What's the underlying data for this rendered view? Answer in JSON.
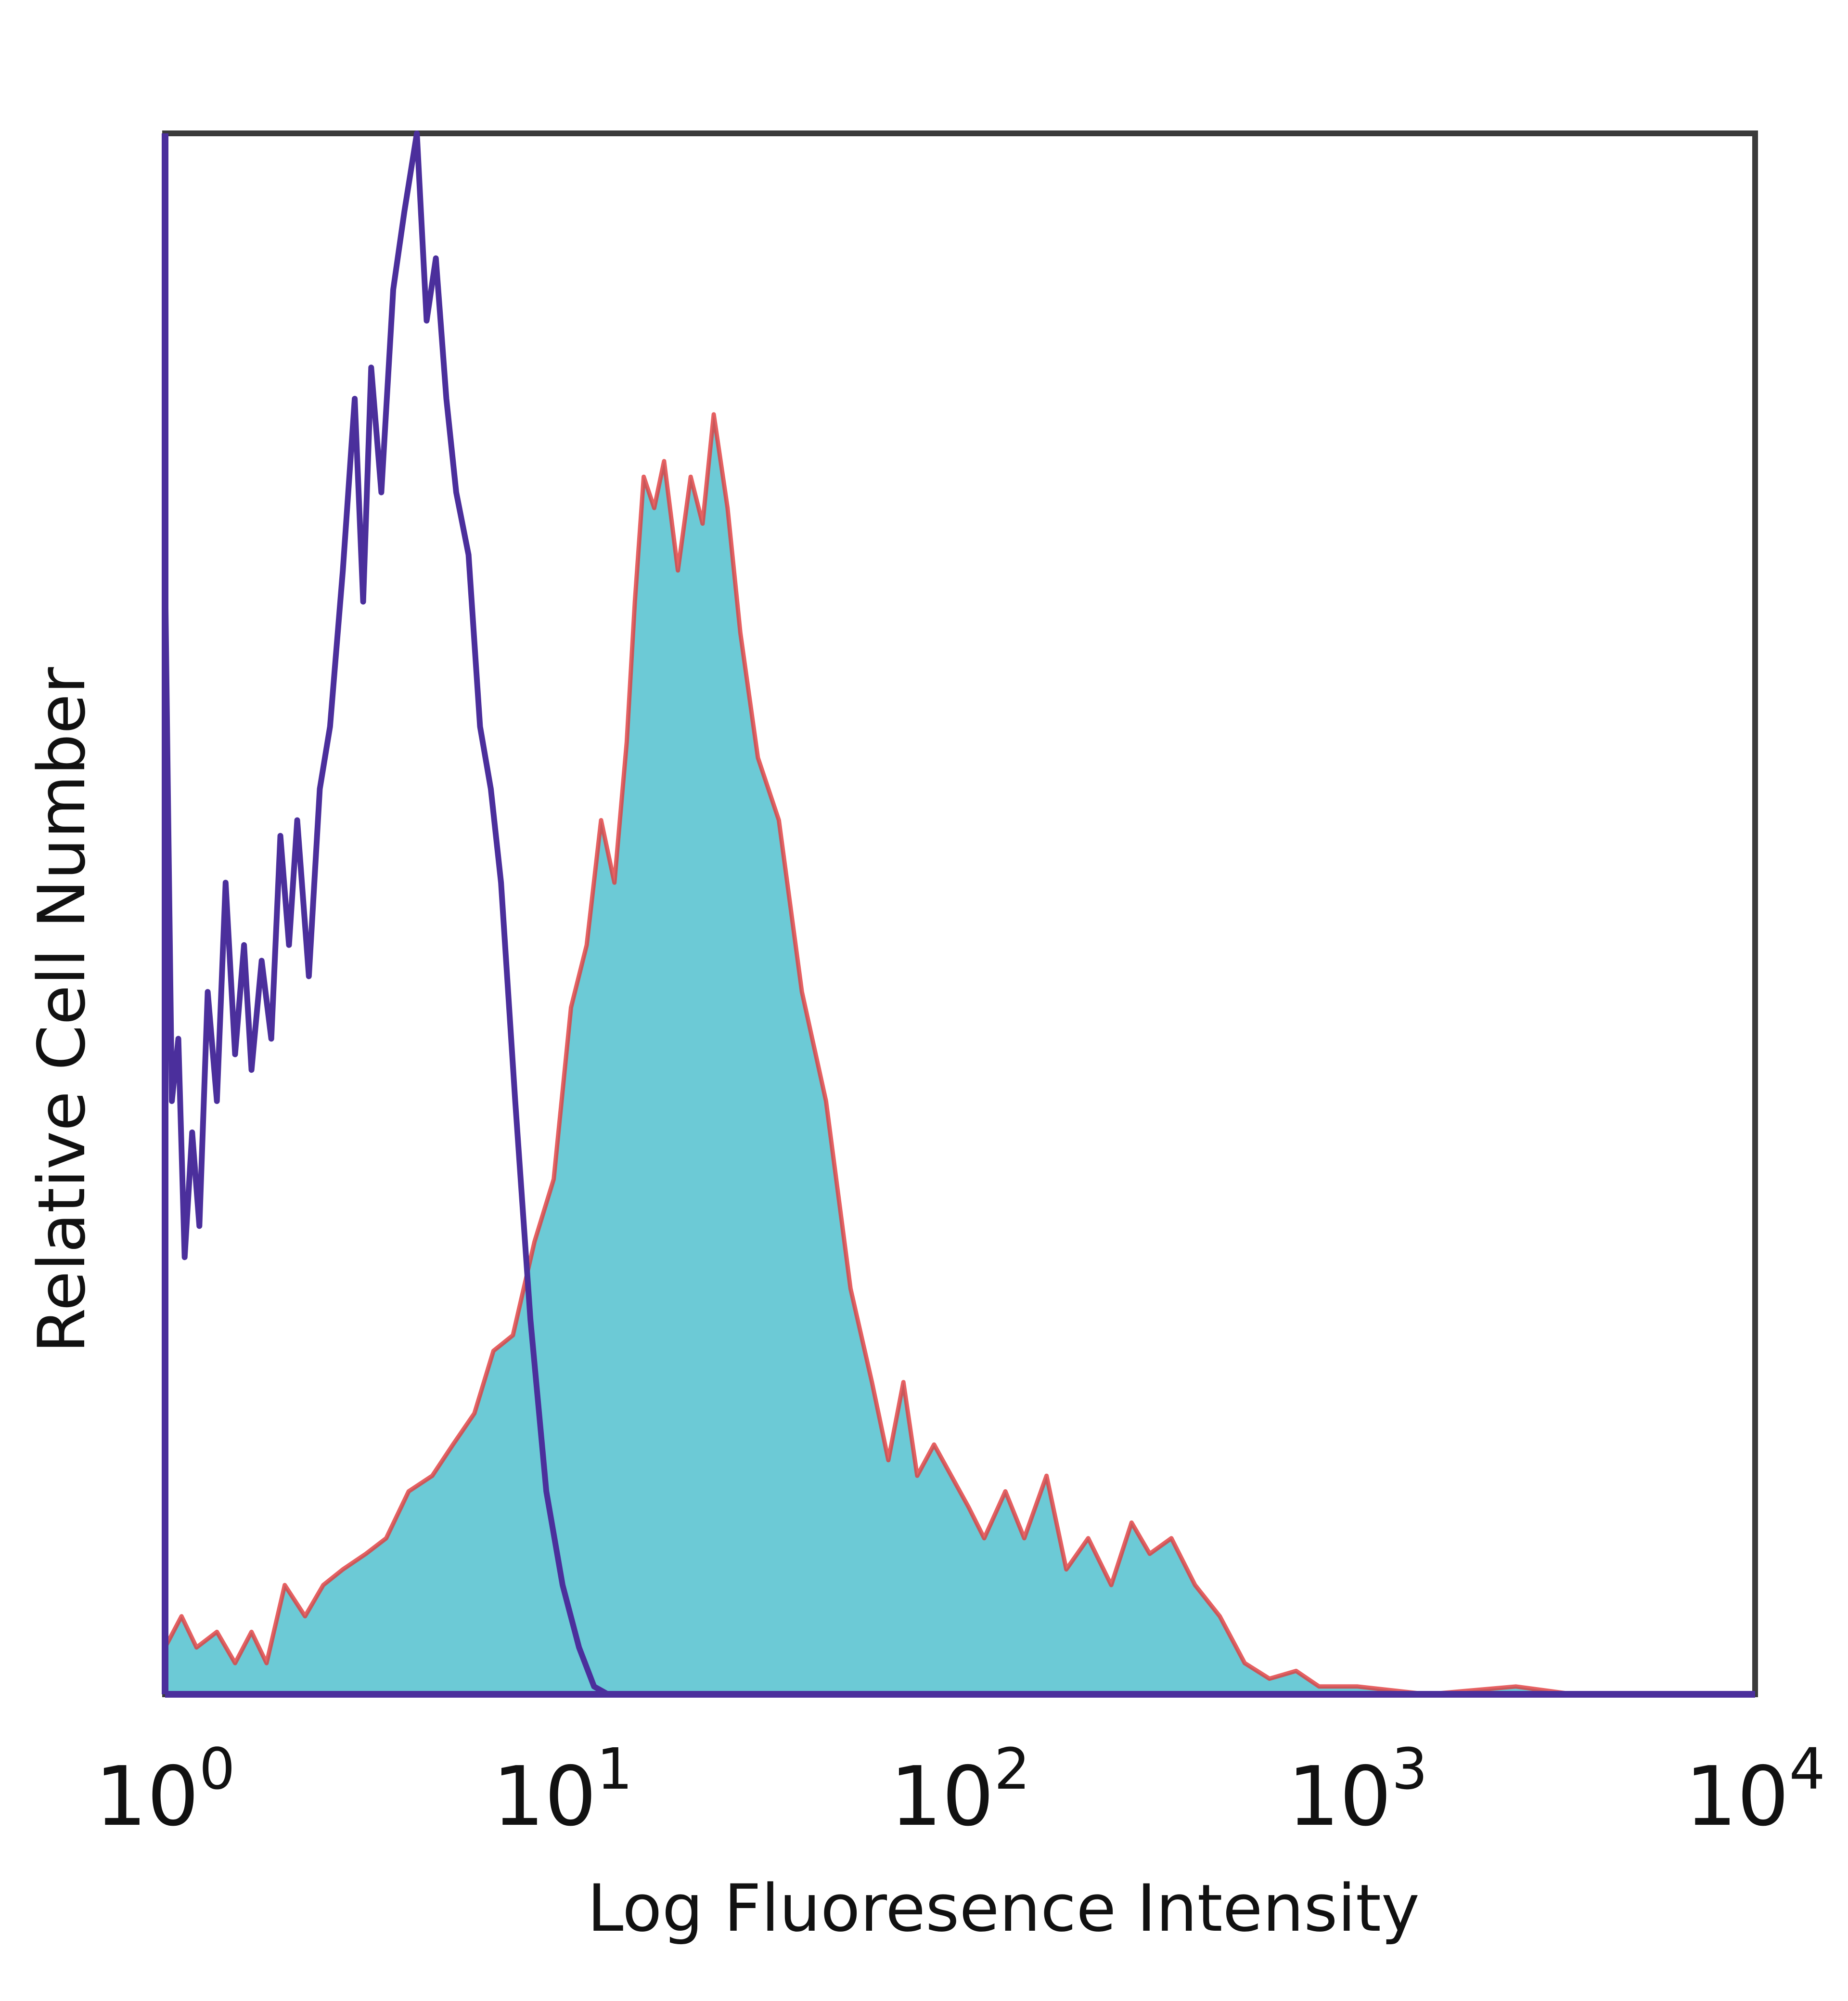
{
  "chart_data": {
    "type": "area",
    "title": "",
    "xlabel": "Log Fluoresence Intensity",
    "ylabel": "Relative Cell Number",
    "x_scale": "log",
    "xlim": [
      1,
      10000
    ],
    "ylim": [
      0,
      100
    ],
    "grid": false,
    "legend": "none",
    "x_ticks": [
      {
        "base": "10",
        "exp": "0",
        "value": 1
      },
      {
        "base": "10",
        "exp": "1",
        "value": 10
      },
      {
        "base": "10",
        "exp": "2",
        "value": 100
      },
      {
        "base": "10",
        "exp": "3",
        "value": 1000
      },
      {
        "base": "10",
        "exp": "4",
        "value": 10000
      }
    ],
    "series": [
      {
        "style": "line",
        "color": "#4b2f9c",
        "points": [
          [
            1.0,
            72
          ],
          [
            1.04,
            38
          ],
          [
            1.08,
            42
          ],
          [
            1.12,
            28
          ],
          [
            1.17,
            36
          ],
          [
            1.22,
            30
          ],
          [
            1.28,
            45
          ],
          [
            1.35,
            38
          ],
          [
            1.42,
            52
          ],
          [
            1.5,
            41
          ],
          [
            1.58,
            48
          ],
          [
            1.65,
            40
          ],
          [
            1.75,
            47
          ],
          [
            1.85,
            42
          ],
          [
            1.95,
            55
          ],
          [
            2.05,
            48
          ],
          [
            2.15,
            56
          ],
          [
            2.3,
            46
          ],
          [
            2.45,
            58
          ],
          [
            2.6,
            62
          ],
          [
            2.8,
            72
          ],
          [
            3.0,
            83
          ],
          [
            3.15,
            70
          ],
          [
            3.3,
            85
          ],
          [
            3.5,
            77
          ],
          [
            3.75,
            90
          ],
          [
            4.0,
            95
          ],
          [
            4.3,
            100
          ],
          [
            4.55,
            88
          ],
          [
            4.8,
            92
          ],
          [
            5.1,
            83
          ],
          [
            5.4,
            77
          ],
          [
            5.8,
            73
          ],
          [
            6.2,
            62
          ],
          [
            6.6,
            58
          ],
          [
            7.0,
            52
          ],
          [
            7.6,
            38
          ],
          [
            8.3,
            24
          ],
          [
            9.1,
            13
          ],
          [
            10.0,
            7
          ],
          [
            11.0,
            3
          ],
          [
            12.0,
            0.5
          ],
          [
            13.0,
            0
          ]
        ]
      },
      {
        "style": "filled",
        "color": "#6ccad6",
        "outline": "#e0393b",
        "points": [
          [
            1.0,
            3
          ],
          [
            1.1,
            5
          ],
          [
            1.2,
            3
          ],
          [
            1.35,
            4
          ],
          [
            1.5,
            2
          ],
          [
            1.65,
            4
          ],
          [
            1.8,
            2
          ],
          [
            2.0,
            7
          ],
          [
            2.25,
            5
          ],
          [
            2.5,
            7
          ],
          [
            2.8,
            8
          ],
          [
            3.2,
            9
          ],
          [
            3.6,
            10
          ],
          [
            4.1,
            13
          ],
          [
            4.7,
            14
          ],
          [
            5.3,
            16
          ],
          [
            6.0,
            18
          ],
          [
            6.7,
            22
          ],
          [
            7.5,
            23
          ],
          [
            8.5,
            29
          ],
          [
            9.5,
            33
          ],
          [
            10.5,
            44
          ],
          [
            11.5,
            48
          ],
          [
            12.5,
            56
          ],
          [
            13.5,
            52
          ],
          [
            14.5,
            61
          ],
          [
            15.2,
            70
          ],
          [
            16.0,
            78
          ],
          [
            17.0,
            76
          ],
          [
            18.0,
            79
          ],
          [
            19.5,
            72
          ],
          [
            21.0,
            78
          ],
          [
            22.5,
            75
          ],
          [
            24.0,
            82
          ],
          [
            26.0,
            76
          ],
          [
            28.0,
            68
          ],
          [
            31.0,
            60
          ],
          [
            35.0,
            56
          ],
          [
            40.0,
            45
          ],
          [
            46.0,
            38
          ],
          [
            53.0,
            26
          ],
          [
            60.0,
            20
          ],
          [
            66.0,
            15
          ],
          [
            72.0,
            20
          ],
          [
            78.0,
            14
          ],
          [
            86.0,
            16
          ],
          [
            95.0,
            14
          ],
          [
            105.0,
            12
          ],
          [
            115.0,
            10
          ],
          [
            130.0,
            13
          ],
          [
            145.0,
            10
          ],
          [
            165.0,
            14
          ],
          [
            185.0,
            8
          ],
          [
            210.0,
            10
          ],
          [
            240.0,
            7
          ],
          [
            270.0,
            11
          ],
          [
            300.0,
            9
          ],
          [
            340.0,
            10
          ],
          [
            390.0,
            7
          ],
          [
            450.0,
            5
          ],
          [
            520.0,
            2
          ],
          [
            600.0,
            1
          ],
          [
            700.0,
            1.5
          ],
          [
            800.0,
            0.5
          ],
          [
            1000.0,
            0.5
          ],
          [
            1500.0,
            0
          ],
          [
            2500.0,
            0.5
          ],
          [
            3500.0,
            0
          ],
          [
            10000.0,
            0
          ]
        ]
      }
    ]
  }
}
